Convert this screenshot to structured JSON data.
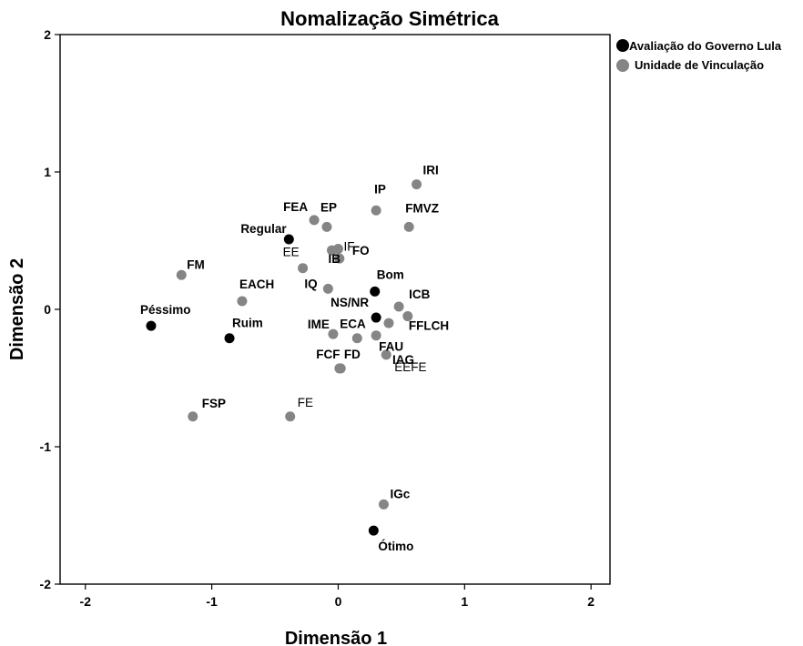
{
  "chart_data": {
    "type": "scatter",
    "title": "Nomalização Simétrica",
    "xlabel": "Dimensão 1",
    "ylabel": "Dimensão 2",
    "xlim": [
      -2.2,
      2.15
    ],
    "ylim": [
      -2.0,
      2.0
    ],
    "xticks": [
      -2,
      -1,
      0,
      1,
      2
    ],
    "yticks": [
      -2,
      -1,
      0,
      1,
      2
    ],
    "grid": false,
    "legend_position": "top-right",
    "series": [
      {
        "name": "Avaliação do Governo Lula",
        "color": "#000000",
        "points": [
          {
            "label": "Péssimo",
            "x": -1.48,
            "y": -0.12,
            "label_style": "bold"
          },
          {
            "label": "Ruim",
            "x": -0.86,
            "y": -0.21,
            "label_style": "bold"
          },
          {
            "label": "Regular",
            "x": -0.39,
            "y": 0.51,
            "label_style": "bold"
          },
          {
            "label": "Bom",
            "x": 0.29,
            "y": 0.13,
            "label_style": "bold"
          },
          {
            "label": "NS/NR",
            "x": 0.3,
            "y": -0.06,
            "label_style": "bold"
          },
          {
            "label": "Ótimo",
            "x": 0.28,
            "y": -1.61,
            "label_style": "bold"
          }
        ]
      },
      {
        "name": "Unidade de Vinculação",
        "color": "#858585",
        "points": [
          {
            "label": "FM",
            "x": -1.24,
            "y": 0.25,
            "label_style": "bold"
          },
          {
            "label": "EACH",
            "x": -0.76,
            "y": 0.06,
            "label_style": "bold"
          },
          {
            "label": "FSP",
            "x": -1.15,
            "y": -0.78,
            "label_style": "bold"
          },
          {
            "label": "FE",
            "x": -0.38,
            "y": -0.78,
            "label_style": "normal"
          },
          {
            "label": "FEA",
            "x": -0.19,
            "y": 0.65,
            "label_style": "bold"
          },
          {
            "label": "EP",
            "x": -0.09,
            "y": 0.6,
            "label_style": "bold"
          },
          {
            "label": "IF",
            "x": 0.0,
            "y": 0.44,
            "label_style": "normal"
          },
          {
            "label": "EE",
            "x": -0.28,
            "y": 0.3,
            "label_style": "normal"
          },
          {
            "label": "FO",
            "x": 0.01,
            "y": 0.37,
            "label_style": "bold"
          },
          {
            "label": "IB",
            "x": -0.05,
            "y": 0.43,
            "label_style": "bold"
          },
          {
            "label": "IQ",
            "x": -0.08,
            "y": 0.15,
            "label_style": "bold"
          },
          {
            "label": "IP",
            "x": 0.3,
            "y": 0.72,
            "label_style": "bold"
          },
          {
            "label": "IRI",
            "x": 0.62,
            "y": 0.91,
            "label_style": "bold"
          },
          {
            "label": "FMVZ",
            "x": 0.56,
            "y": 0.6,
            "label_style": "bold"
          },
          {
            "label": "ICB",
            "x": 0.48,
            "y": 0.02,
            "label_style": "bold"
          },
          {
            "label": "FFLCH",
            "x": 0.55,
            "y": -0.05,
            "label_style": "bold"
          },
          {
            "label": "IME",
            "x": -0.04,
            "y": -0.18,
            "label_style": "bold"
          },
          {
            "label": "ECA",
            "x": 0.15,
            "y": -0.21,
            "label_style": "bold"
          },
          {
            "label": "FCF",
            "x": 0.02,
            "y": -0.43,
            "label_style": "bold"
          },
          {
            "label": "FD",
            "x": 0.01,
            "y": -0.43,
            "label_style": "bold"
          },
          {
            "label": "FAU",
            "x": 0.3,
            "y": -0.19,
            "label_style": "bold"
          },
          {
            "label": "EEFE",
            "x": 0.38,
            "y": -0.33,
            "label_style": "normal"
          },
          {
            "label": "IAG",
            "x": 0.4,
            "y": -0.1,
            "label_style": "bold"
          },
          {
            "label": "IGc",
            "x": 0.36,
            "y": -1.42,
            "label_style": "bold"
          }
        ]
      }
    ]
  }
}
